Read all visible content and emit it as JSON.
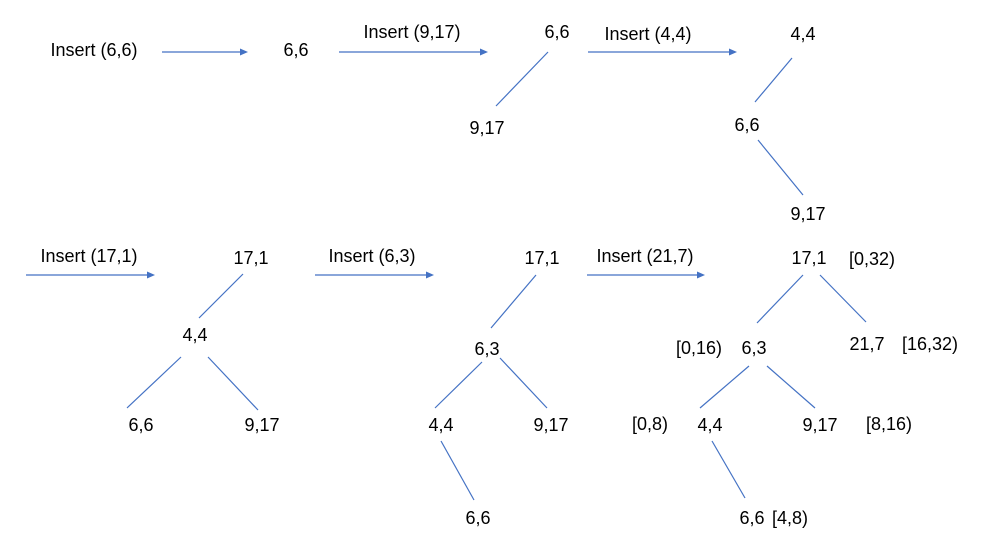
{
  "colors": {
    "line": "#4472c4",
    "text": "#000000"
  },
  "steps": [
    {
      "label": "Insert (6,6)",
      "nodes": [
        "6,6"
      ]
    },
    {
      "label": "Insert (9,17)",
      "nodes": [
        "6,6",
        "9,17"
      ]
    },
    {
      "label": "Insert (4,4)",
      "nodes": [
        "4,4",
        "6,6",
        "9,17"
      ]
    },
    {
      "label": "Insert (17,1)",
      "nodes": [
        "17,1",
        "4,4",
        "6,6",
        "9,17"
      ]
    },
    {
      "label": "Insert (6,3)",
      "nodes": [
        "17,1",
        "6,3",
        "4,4",
        "9,17",
        "6,6"
      ]
    },
    {
      "label": "Insert (21,7)",
      "nodes": [
        "17,1",
        "6,3",
        "21,7",
        "4,4",
        "9,17",
        "6,6"
      ]
    }
  ],
  "final_intervals": {
    "root": "[0,32)",
    "left": "[0,16)",
    "right": "[16,32)",
    "left_left": "[0,8)",
    "left_right": "[8,16)",
    "left_left_right": "[4,8)"
  }
}
